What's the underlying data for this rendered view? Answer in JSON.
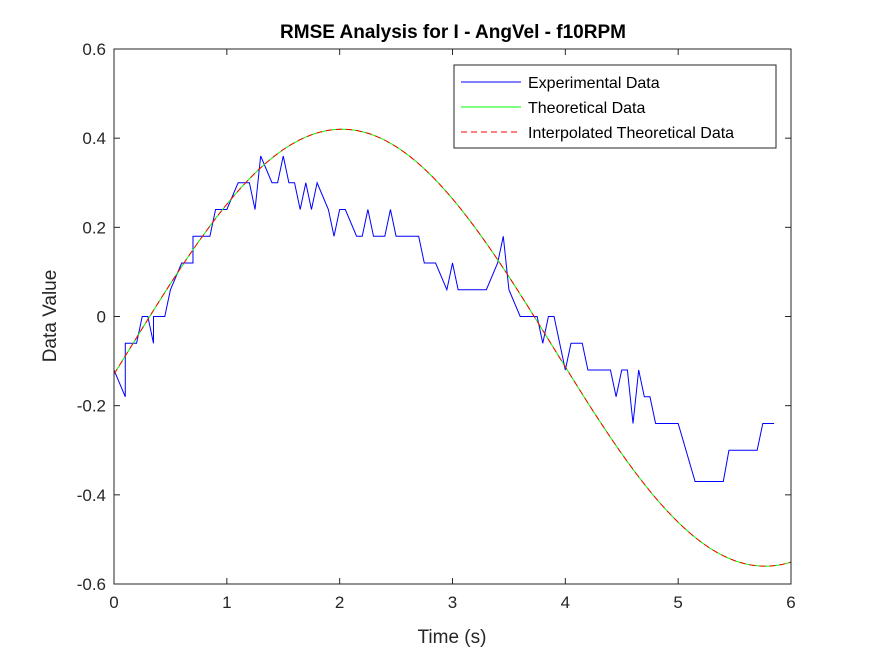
{
  "chart_data": {
    "type": "line",
    "title": "RMSE Analysis for I - AngVel - f10RPM",
    "xlabel": "Time (s)",
    "ylabel": "Data Value",
    "xlim": [
      0,
      6
    ],
    "ylim": [
      -0.6,
      0.6
    ],
    "xticks": [
      0,
      1,
      2,
      3,
      4,
      5,
      6
    ],
    "yticks": [
      -0.6,
      -0.4,
      -0.2,
      0,
      0.2,
      0.4,
      0.6
    ],
    "grid": false,
    "legend_position": "top-right",
    "series": [
      {
        "name": "Experimental Data",
        "color": "#0000ff",
        "style": "solid",
        "x": [
          0,
          0.1,
          0.1,
          0.2,
          0.25,
          0.3,
          0.35,
          0.35,
          0.45,
          0.5,
          0.55,
          0.6,
          0.7,
          0.7,
          0.8,
          0.85,
          0.9,
          1.0,
          1.1,
          1.2,
          1.25,
          1.3,
          1.4,
          1.45,
          1.5,
          1.55,
          1.6,
          1.65,
          1.7,
          1.75,
          1.8,
          1.85,
          1.9,
          1.95,
          2.0,
          2.05,
          2.15,
          2.2,
          2.25,
          2.3,
          2.4,
          2.45,
          2.5,
          2.6,
          2.7,
          2.75,
          2.85,
          2.95,
          3.0,
          3.05,
          3.1,
          3.15,
          3.3,
          3.4,
          3.45,
          3.5,
          3.6,
          3.7,
          3.75,
          3.8,
          3.85,
          3.9,
          4.0,
          4.05,
          4.15,
          4.2,
          4.3,
          4.4,
          4.45,
          4.5,
          4.55,
          4.6,
          4.65,
          4.7,
          4.75,
          4.8,
          4.85,
          5.0,
          5.15,
          5.4,
          5.45,
          5.5,
          5.7,
          5.75,
          5.85
        ],
        "y": [
          -0.12,
          -0.18,
          -0.06,
          -0.06,
          0.0,
          0.0,
          -0.06,
          0.0,
          0.0,
          0.06,
          0.09,
          0.12,
          0.12,
          0.18,
          0.18,
          0.18,
          0.24,
          0.24,
          0.3,
          0.3,
          0.24,
          0.36,
          0.3,
          0.3,
          0.36,
          0.3,
          0.3,
          0.24,
          0.3,
          0.24,
          0.3,
          0.27,
          0.24,
          0.18,
          0.24,
          0.24,
          0.18,
          0.18,
          0.24,
          0.18,
          0.18,
          0.24,
          0.18,
          0.18,
          0.18,
          0.12,
          0.12,
          0.06,
          0.12,
          0.06,
          0.06,
          0.06,
          0.06,
          0.12,
          0.18,
          0.06,
          0.0,
          0.0,
          0.0,
          -0.06,
          0.0,
          0.0,
          -0.12,
          -0.06,
          -0.06,
          -0.12,
          -0.12,
          -0.12,
          -0.18,
          -0.12,
          -0.12,
          -0.24,
          -0.12,
          -0.18,
          -0.18,
          -0.24,
          -0.24,
          -0.24,
          -0.37,
          -0.37,
          -0.3,
          -0.3,
          -0.3,
          -0.24,
          -0.24
        ]
      },
      {
        "name": "Theoretical Data",
        "color": "#00ff00",
        "style": "solid",
        "function": {
          "offset": -0.07,
          "amplitude": 0.49,
          "period": 7.5,
          "peak_time": 2.02
        }
      },
      {
        "name": "Interpolated Theoretical Data",
        "color": "#ff0000",
        "style": "dashed",
        "function": {
          "offset": -0.07,
          "amplitude": 0.49,
          "period": 7.5,
          "peak_time": 2.02
        }
      }
    ]
  }
}
